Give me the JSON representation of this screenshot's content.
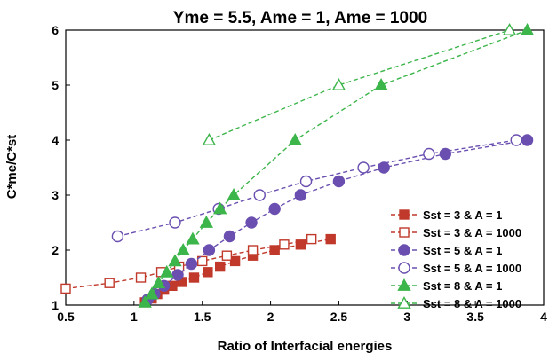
{
  "chart_data": {
    "type": "line",
    "title": "Yme = 5.5, Ame = 1, Ame = 1000",
    "xlabel": "Ratio of Interfacial energies",
    "ylabel": "C*me/C*st",
    "xlim": [
      0.5,
      4
    ],
    "ylim": [
      1,
      6
    ],
    "xticks": [
      "0.5",
      "1",
      "1.5",
      "2",
      "2.5",
      "3",
      "3.5",
      "4"
    ],
    "yticks": [
      "1",
      "2",
      "3",
      "4",
      "5",
      "6"
    ],
    "grid": false,
    "legend_position": "right",
    "series": [
      {
        "name": "Sst = 3 & A = 1",
        "color": "#c0392b",
        "marker": "square",
        "filled": true,
        "x": [
          1.08,
          1.13,
          1.17,
          1.22,
          1.28,
          1.35,
          1.44,
          1.54,
          1.63,
          1.74,
          1.87,
          2.03,
          2.22,
          2.44
        ],
        "y": [
          1.05,
          1.12,
          1.2,
          1.28,
          1.35,
          1.42,
          1.5,
          1.6,
          1.7,
          1.8,
          1.9,
          2.0,
          2.1,
          2.2
        ]
      },
      {
        "name": "Sst = 3 & A = 1000",
        "color": "#c0392b",
        "marker": "square",
        "filled": false,
        "x": [
          0.5,
          0.82,
          1.05,
          1.2,
          1.33,
          1.5,
          1.68,
          1.87,
          2.1,
          2.3
        ],
        "y": [
          1.3,
          1.4,
          1.5,
          1.6,
          1.7,
          1.8,
          1.9,
          2.0,
          2.1,
          2.2
        ]
      },
      {
        "name": "Sst = 5 & A = 1",
        "color": "#6a4fb0",
        "marker": "circle",
        "filled": true,
        "x": [
          1.1,
          1.15,
          1.22,
          1.32,
          1.42,
          1.55,
          1.7,
          1.86,
          2.03,
          2.22,
          2.5,
          2.83,
          3.28,
          3.88
        ],
        "y": [
          1.1,
          1.2,
          1.35,
          1.55,
          1.75,
          2.0,
          2.25,
          2.5,
          2.75,
          3.0,
          3.25,
          3.5,
          3.75,
          4.0
        ]
      },
      {
        "name": "Sst = 5 & A = 1000",
        "color": "#6a4fb0",
        "marker": "circle",
        "filled": false,
        "x": [
          0.88,
          1.3,
          1.62,
          1.92,
          2.26,
          2.68,
          3.16,
          3.8
        ],
        "y": [
          2.25,
          2.5,
          2.75,
          3.0,
          3.25,
          3.5,
          3.75,
          4.0
        ]
      },
      {
        "name": "Sst = 8 & A = 1",
        "color": "#3cb54a",
        "marker": "triangle",
        "filled": true,
        "x": [
          1.08,
          1.13,
          1.18,
          1.24,
          1.3,
          1.36,
          1.43,
          1.53,
          1.63,
          1.73,
          2.18,
          2.81,
          3.88
        ],
        "y": [
          1.05,
          1.2,
          1.4,
          1.6,
          1.8,
          2.0,
          2.2,
          2.5,
          2.75,
          3.0,
          4.0,
          5.0,
          6.0
        ]
      },
      {
        "name": "Sst = 8 & A = 1000",
        "color": "#3cb54a",
        "marker": "triangle",
        "filled": false,
        "x": [
          1.55,
          2.5,
          3.75
        ],
        "y": [
          4.0,
          5.0,
          6.0
        ]
      }
    ]
  }
}
